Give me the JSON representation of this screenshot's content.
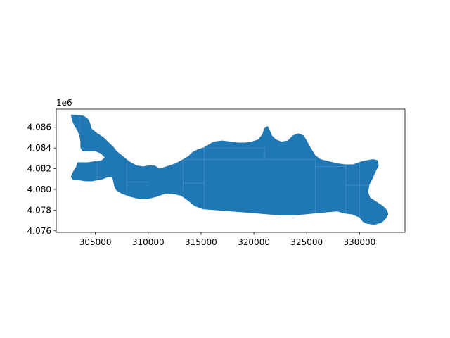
{
  "chart_data": {
    "type": "map",
    "title": "",
    "xlabel": "",
    "ylabel": "",
    "xlim": [
      301300,
      334300
    ],
    "ylim": [
      4075850,
      4087750
    ],
    "y_offset_label": "1e6",
    "x_ticks": [
      {
        "value": 305000,
        "label": "305000"
      },
      {
        "value": 310000,
        "label": "310000"
      },
      {
        "value": 315000,
        "label": "315000"
      },
      {
        "value": 320000,
        "label": "320000"
      },
      {
        "value": 325000,
        "label": "325000"
      },
      {
        "value": 330000,
        "label": "330000"
      }
    ],
    "y_ticks": [
      {
        "value": 4076000,
        "label": "4.076"
      },
      {
        "value": 4078000,
        "label": "4.078"
      },
      {
        "value": 4080000,
        "label": "4.080"
      },
      {
        "value": 4082000,
        "label": "4.082"
      },
      {
        "value": 4084000,
        "label": "4.084"
      },
      {
        "value": 4086000,
        "label": "4.086"
      }
    ],
    "fill_color": "#1f77b4",
    "edge_color": "#ffffff",
    "polygon": [
      [
        302700,
        4087200
      ],
      [
        303200,
        4087200
      ],
      [
        303900,
        4087100
      ],
      [
        304300,
        4086800
      ],
      [
        304500,
        4086400
      ],
      [
        304600,
        4085900
      ],
      [
        305200,
        4085400
      ],
      [
        305800,
        4085000
      ],
      [
        306200,
        4084600
      ],
      [
        306700,
        4084100
      ],
      [
        307000,
        4083700
      ],
      [
        307600,
        4083200
      ],
      [
        308200,
        4082700
      ],
      [
        308900,
        4082300
      ],
      [
        309500,
        4082200
      ],
      [
        310100,
        4082300
      ],
      [
        310600,
        4082300
      ],
      [
        311100,
        4082000
      ],
      [
        311700,
        4082200
      ],
      [
        312600,
        4082500
      ],
      [
        313300,
        4082900
      ],
      [
        313800,
        4083200
      ],
      [
        314200,
        4083600
      ],
      [
        314800,
        4083900
      ],
      [
        315200,
        4084000
      ],
      [
        315700,
        4084300
      ],
      [
        316200,
        4084600
      ],
      [
        317000,
        4084700
      ],
      [
        317800,
        4084600
      ],
      [
        318500,
        4084500
      ],
      [
        319200,
        4084500
      ],
      [
        319800,
        4084600
      ],
      [
        320400,
        4084800
      ],
      [
        320800,
        4085300
      ],
      [
        321000,
        4085900
      ],
      [
        321300,
        4086100
      ],
      [
        321500,
        4085700
      ],
      [
        321700,
        4085200
      ],
      [
        322100,
        4084800
      ],
      [
        322600,
        4084600
      ],
      [
        323200,
        4084700
      ],
      [
        323700,
        4085200
      ],
      [
        324200,
        4085400
      ],
      [
        324700,
        4085200
      ],
      [
        325000,
        4084700
      ],
      [
        325200,
        4084300
      ],
      [
        325500,
        4083800
      ],
      [
        325800,
        4083300
      ],
      [
        326300,
        4082900
      ],
      [
        327100,
        4082700
      ],
      [
        327900,
        4082500
      ],
      [
        328700,
        4082400
      ],
      [
        329400,
        4082400
      ],
      [
        330200,
        4082700
      ],
      [
        330700,
        4082800
      ],
      [
        331300,
        4082900
      ],
      [
        331700,
        4082800
      ],
      [
        331800,
        4082300
      ],
      [
        331500,
        4081700
      ],
      [
        331200,
        4081000
      ],
      [
        330900,
        4080400
      ],
      [
        330800,
        4079700
      ],
      [
        331000,
        4079200
      ],
      [
        331600,
        4078800
      ],
      [
        332200,
        4078400
      ],
      [
        332600,
        4078000
      ],
      [
        332700,
        4077600
      ],
      [
        332500,
        4077200
      ],
      [
        332100,
        4076800
      ],
      [
        331400,
        4076600
      ],
      [
        330700,
        4076700
      ],
      [
        330300,
        4076900
      ],
      [
        330000,
        4077300
      ],
      [
        329300,
        4077600
      ],
      [
        328500,
        4077700
      ],
      [
        327900,
        4077900
      ],
      [
        326900,
        4077800
      ],
      [
        325800,
        4077700
      ],
      [
        324800,
        4077600
      ],
      [
        323700,
        4077500
      ],
      [
        322600,
        4077500
      ],
      [
        321400,
        4077600
      ],
      [
        320200,
        4077700
      ],
      [
        319000,
        4077800
      ],
      [
        317800,
        4077900
      ],
      [
        316500,
        4078000
      ],
      [
        315200,
        4078100
      ],
      [
        314400,
        4078400
      ],
      [
        313800,
        4078900
      ],
      [
        313100,
        4079400
      ],
      [
        312300,
        4079600
      ],
      [
        311600,
        4079600
      ],
      [
        310800,
        4079300
      ],
      [
        310000,
        4079100
      ],
      [
        309100,
        4079100
      ],
      [
        308300,
        4079300
      ],
      [
        307500,
        4079600
      ],
      [
        307000,
        4079900
      ],
      [
        306800,
        4080300
      ],
      [
        306700,
        4080800
      ],
      [
        306600,
        4081200
      ],
      [
        306200,
        4081200
      ],
      [
        305700,
        4081000
      ],
      [
        305200,
        4080900
      ],
      [
        304700,
        4080800
      ],
      [
        304100,
        4080800
      ],
      [
        303400,
        4080900
      ],
      [
        302900,
        4080900
      ],
      [
        302700,
        4081200
      ],
      [
        302900,
        4081700
      ],
      [
        303200,
        4082200
      ],
      [
        303300,
        4082600
      ],
      [
        303700,
        4082600
      ],
      [
        304300,
        4082600
      ],
      [
        304900,
        4082700
      ],
      [
        305600,
        4082800
      ],
      [
        305900,
        4083100
      ],
      [
        305500,
        4083500
      ],
      [
        305000,
        4083700
      ],
      [
        304400,
        4083700
      ],
      [
        303800,
        4083700
      ],
      [
        303600,
        4084000
      ],
      [
        303600,
        4084600
      ],
      [
        303500,
        4085200
      ],
      [
        303300,
        4085700
      ],
      [
        303000,
        4086200
      ],
      [
        302800,
        4086700
      ]
    ]
  }
}
